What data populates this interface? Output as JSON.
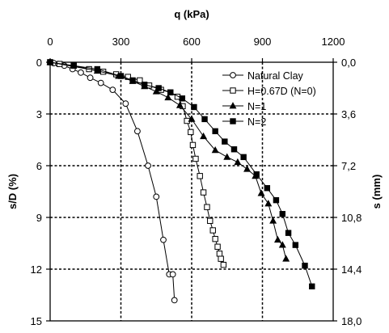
{
  "chart_data": {
    "type": "line",
    "title": "",
    "xlabel": "q (kPa)",
    "ylabel": "s/D (%)",
    "ylabel_right": "s (mm)",
    "xlim": [
      0,
      1200
    ],
    "ylim": [
      15,
      0
    ],
    "y2lim": [
      18.0,
      0.0
    ],
    "x_ticks": [
      "0",
      "300",
      "600",
      "900",
      "1200"
    ],
    "y_ticks": [
      "0",
      "3",
      "6",
      "9",
      "12",
      "15"
    ],
    "y2_ticks": [
      "0,0",
      "3,6",
      "7,2",
      "10,8",
      "14,4",
      "18,0"
    ],
    "grid": "dashed at x=300, 600, 900 and y=3, 6, 9, 12",
    "legend_position": "top-right",
    "series": [
      {
        "name": "Natural Clay",
        "marker": "circle-open",
        "x": [
          0,
          15,
          35,
          60,
          95,
          130,
          170,
          215,
          265,
          320,
          370,
          415,
          450,
          480,
          505,
          520,
          527
        ],
        "y": [
          0,
          0.05,
          0.1,
          0.2,
          0.4,
          0.6,
          0.9,
          1.2,
          1.6,
          2.4,
          4.0,
          6.0,
          7.8,
          10.3,
          12.3,
          12.3,
          13.8
        ]
      },
      {
        "name": "H=0.67D (N=0)",
        "marker": "square-open",
        "x": [
          0,
          40,
          100,
          165,
          225,
          280,
          330,
          380,
          420,
          470,
          510,
          540,
          562,
          580,
          596,
          605,
          617,
          635,
          650,
          665,
          678,
          690,
          700,
          710,
          718,
          724,
          735
        ],
        "y": [
          0,
          0.1,
          0.2,
          0.4,
          0.55,
          0.7,
          0.85,
          1.05,
          1.35,
          1.6,
          1.75,
          2.0,
          2.55,
          3.4,
          4.05,
          4.8,
          5.6,
          6.6,
          7.55,
          8.4,
          9.2,
          9.75,
          10.25,
          10.7,
          11.1,
          11.4,
          11.75
        ]
      },
      {
        "name": "N=1",
        "marker": "triangle-filled",
        "x": [
          0,
          200,
          290,
          350,
          400,
          450,
          500,
          550,
          600,
          650,
          700,
          750,
          795,
          835,
          870,
          895,
          925,
          945,
          965,
          985,
          1000
        ],
        "y": [
          0,
          0.5,
          0.8,
          1.1,
          1.4,
          1.7,
          2.05,
          2.5,
          3.3,
          4.3,
          5.1,
          5.5,
          5.8,
          6.2,
          6.6,
          7.6,
          8.2,
          9.2,
          10.3,
          10.6,
          11.4
        ]
      },
      {
        "name": "N=2",
        "marker": "square-filled",
        "x": [
          0,
          100,
          200,
          300,
          350,
          400,
          460,
          510,
          560,
          610,
          655,
          700,
          740,
          780,
          820,
          875,
          920,
          958,
          985,
          1010,
          1040,
          1080,
          1110
        ],
        "y": [
          0,
          0.2,
          0.4,
          0.8,
          1.05,
          1.3,
          1.5,
          1.75,
          2.1,
          2.6,
          3.3,
          4.0,
          4.6,
          5.05,
          5.5,
          6.5,
          7.3,
          8.0,
          8.8,
          9.9,
          10.6,
          11.8,
          13.0
        ]
      }
    ]
  }
}
